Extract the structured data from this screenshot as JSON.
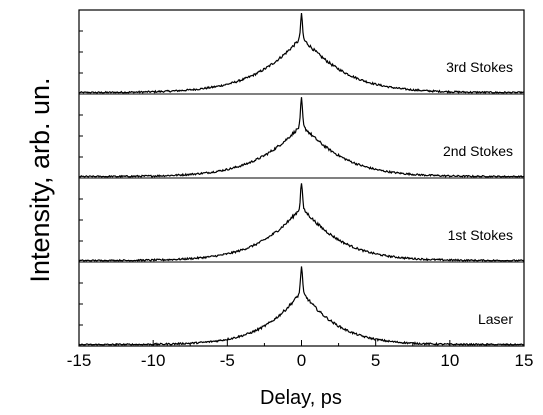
{
  "chart_data": {
    "type": "line",
    "xlabel": "Delay, ps",
    "ylabel": "Intensity, arb. un.",
    "xlim": [
      -15,
      15
    ],
    "x_ticks": [
      -15,
      -10,
      -5,
      0,
      5,
      10,
      15
    ],
    "x_tick_labels": [
      "-15",
      "-10",
      "-5",
      "0",
      "5",
      "10",
      "15"
    ],
    "grid": false,
    "legend": "none",
    "panels": [
      {
        "label": "3rd Stokes",
        "peak_delay": 0.0,
        "envelope_halfwidth": 5.5,
        "envelope_height": 0.66,
        "spike_height": 0.93,
        "baseline_noise": 0.02
      },
      {
        "label": "2nd Stokes",
        "peak_delay": 0.0,
        "envelope_halfwidth": 5.2,
        "envelope_height": 0.62,
        "spike_height": 0.93,
        "baseline_noise": 0.02
      },
      {
        "label": "1st Stokes",
        "peak_delay": 0.0,
        "envelope_halfwidth": 4.9,
        "envelope_height": 0.64,
        "spike_height": 0.93,
        "baseline_noise": 0.02
      },
      {
        "label": "Laser",
        "peak_delay": 0.0,
        "envelope_halfwidth": 4.3,
        "envelope_height": 0.64,
        "spike_height": 0.93,
        "baseline_noise": 0.02
      }
    ],
    "colors": {
      "line": "#000000",
      "axes": "#000000"
    }
  }
}
